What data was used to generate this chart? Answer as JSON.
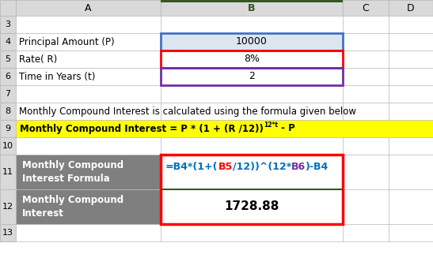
{
  "col_headers": [
    "A",
    "B",
    "C",
    "D"
  ],
  "row_numbers": [
    3,
    4,
    5,
    6,
    7,
    8,
    9,
    10,
    11,
    12,
    13
  ],
  "cell_A4": "Principal Amount (P)",
  "cell_B4": "10000",
  "cell_A5": "Rate( R)",
  "cell_B5": "8%",
  "cell_A6": "Time in Years (t)",
  "cell_B6": "2",
  "cell_A8": "Monthly Compound Interest is calculated using the formula given below",
  "cell_A9_main": "Monthly Compound Interest = P * (1 + (R /12))",
  "cell_A9_sup": "12*t",
  "cell_A9_end": " - P",
  "cell_A11_label": "Monthly Compound\nInterest Formula",
  "cell_B11_formula_parts": [
    {
      "text": "=B4*(1+(",
      "color": "#0070C0"
    },
    {
      "text": "B5",
      "color": "#FF0000"
    },
    {
      "text": "/12))^(12*",
      "color": "#0070C0"
    },
    {
      "text": "B6",
      "color": "#7030A0"
    },
    {
      "text": ")-B4",
      "color": "#0070C0"
    }
  ],
  "cell_A12_label": "Monthly Compound\nInterest",
  "cell_B12_value": "1728.88",
  "bg_color_spreadsheet": "#ffffff",
  "bg_color_header_col": "#d9d9d9",
  "bg_color_header_row": "#d9d9d9",
  "bg_color_B4": "#dce6f1",
  "bg_color_dark_label": "#7f7f7f",
  "bg_color_yellow": "#ffff00",
  "border_color_B4": "#4472C4",
  "border_color_B5": "#FF0000",
  "border_color_B6": "#7030A0",
  "border_color_formula": "#FF0000",
  "border_color_header_B": "#375623",
  "grid_color": "#bfbfbf",
  "text_color_dark_label": "#ffffff",
  "text_color_black": "#000000",
  "text_color_green": "#375623",
  "figsize": [
    5.47,
    3.27
  ],
  "dpi": 100
}
